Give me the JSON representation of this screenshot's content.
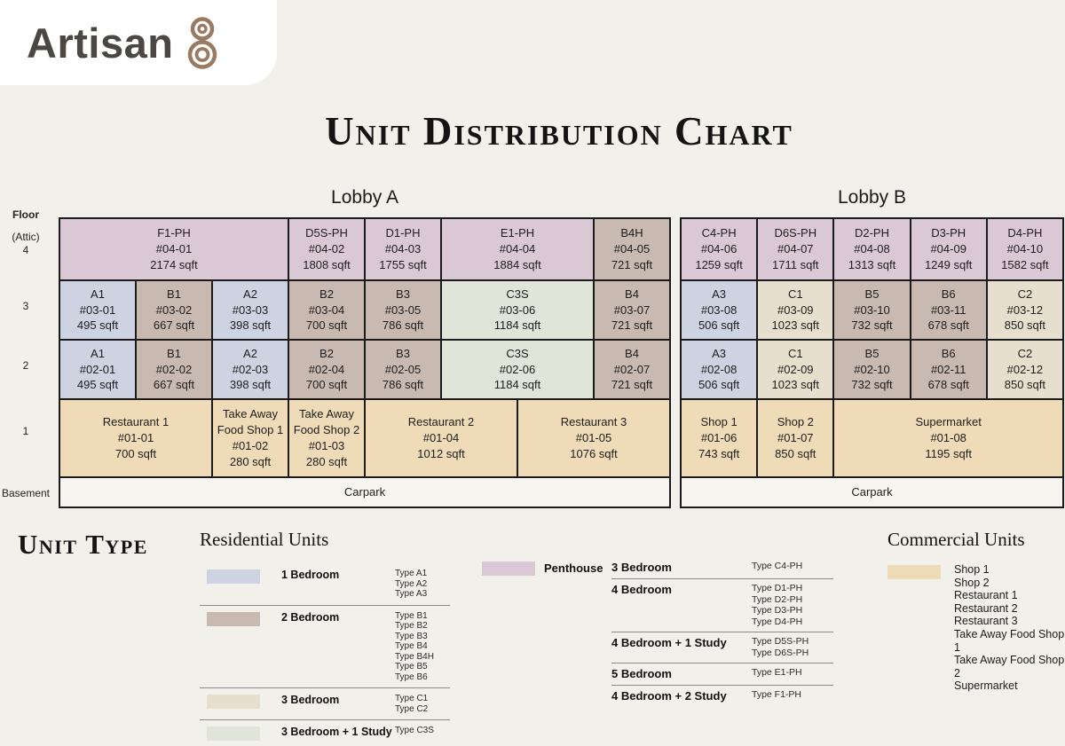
{
  "branding": {
    "name": "Artisan",
    "number": "8",
    "text_color": "#4a4745",
    "number_color": "#9a7a61"
  },
  "colors": {
    "penthouse": "#dbc8d5",
    "bed1": "#cdd3e0",
    "bed2": "#c8bab1",
    "bed3": "#e6dfcd",
    "bed3s": "#dfe5d9",
    "commercial": "#efdbb7",
    "carpark": "#f6f5ef"
  },
  "chart_data": {
    "type": "table",
    "title": "Unit Distribution Chart",
    "floor_axis": {
      "header": "Floor",
      "attic_label": "(Attic)",
      "floor4": "4",
      "floor3": "3",
      "floor2": "2",
      "floor1": "1",
      "basement": "Basement"
    },
    "lobbies": [
      {
        "name": "Lobby A",
        "columns": 8,
        "rows": [
          {
            "floor": "4 (Attic)",
            "cells": [
              {
                "span": 3,
                "type": "penthouse",
                "lines": [
                  "F1-PH",
                  "#04-01",
                  "2174 sqft"
                ]
              },
              {
                "span": 1,
                "type": "penthouse",
                "lines": [
                  "D5S-PH",
                  "#04-02",
                  "1808 sqft"
                ]
              },
              {
                "span": 1,
                "type": "penthouse",
                "lines": [
                  "D1-PH",
                  "#04-03",
                  "1755 sqft"
                ]
              },
              {
                "span": 2,
                "type": "penthouse",
                "lines": [
                  "E1-PH",
                  "#04-04",
                  "1884 sqft"
                ]
              },
              {
                "span": 1,
                "type": "bed2",
                "lines": [
                  "B4H",
                  "#04-05",
                  "721 sqft"
                ]
              }
            ]
          },
          {
            "floor": "3",
            "cells": [
              {
                "span": 1,
                "type": "bed1",
                "lines": [
                  "A1",
                  "#03-01",
                  "495 sqft"
                ]
              },
              {
                "span": 1,
                "type": "bed2",
                "lines": [
                  "B1",
                  "#03-02",
                  "667 sqft"
                ]
              },
              {
                "span": 1,
                "type": "bed1",
                "lines": [
                  "A2",
                  "#03-03",
                  "398 sqft"
                ]
              },
              {
                "span": 1,
                "type": "bed2",
                "lines": [
                  "B2",
                  "#03-04",
                  "700 sqft"
                ]
              },
              {
                "span": 1,
                "type": "bed2",
                "lines": [
                  "B3",
                  "#03-05",
                  "786 sqft"
                ]
              },
              {
                "span": 2,
                "type": "bed3s",
                "lines": [
                  "C3S",
                  "#03-06",
                  "1184 sqft"
                ]
              },
              {
                "span": 1,
                "type": "bed2",
                "lines": [
                  "B4",
                  "#03-07",
                  "721 sqft"
                ]
              }
            ]
          },
          {
            "floor": "2",
            "cells": [
              {
                "span": 1,
                "type": "bed1",
                "lines": [
                  "A1",
                  "#02-01",
                  "495 sqft"
                ]
              },
              {
                "span": 1,
                "type": "bed2",
                "lines": [
                  "B1",
                  "#02-02",
                  "667 sqft"
                ]
              },
              {
                "span": 1,
                "type": "bed1",
                "lines": [
                  "A2",
                  "#02-03",
                  "398 sqft"
                ]
              },
              {
                "span": 1,
                "type": "bed2",
                "lines": [
                  "B2",
                  "#02-04",
                  "700 sqft"
                ]
              },
              {
                "span": 1,
                "type": "bed2",
                "lines": [
                  "B3",
                  "#02-05",
                  "786 sqft"
                ]
              },
              {
                "span": 2,
                "type": "bed3s",
                "lines": [
                  "C3S",
                  "#02-06",
                  "1184 sqft"
                ]
              },
              {
                "span": 1,
                "type": "bed2",
                "lines": [
                  "B4",
                  "#02-07",
                  "721 sqft"
                ]
              }
            ]
          },
          {
            "floor": "1",
            "cells": [
              {
                "span": 2,
                "type": "commercial",
                "lines": [
                  "Restaurant 1",
                  "#01-01",
                  "700 sqft"
                ]
              },
              {
                "span": 1,
                "type": "commercial",
                "lines": [
                  "Take Away",
                  "Food Shop 1",
                  "#01-02",
                  "280 sqft"
                ]
              },
              {
                "span": 1,
                "type": "commercial",
                "lines": [
                  "Take Away",
                  "Food Shop 2",
                  "#01-03",
                  "280 sqft"
                ]
              },
              {
                "span": 2,
                "type": "commercial",
                "lines": [
                  "Restaurant 2",
                  "#01-04",
                  "1012 sqft"
                ]
              },
              {
                "span": 2,
                "type": "commercial",
                "lines": [
                  "Restaurant 3",
                  "#01-05",
                  "1076 sqft"
                ]
              }
            ]
          },
          {
            "floor": "Basement",
            "cells": [
              {
                "span": 8,
                "type": "carpark",
                "lines": [
                  "Carpark"
                ]
              }
            ]
          }
        ]
      },
      {
        "name": "Lobby B",
        "columns": 5,
        "rows": [
          {
            "floor": "4 (Attic)",
            "cells": [
              {
                "span": 1,
                "type": "penthouse",
                "lines": [
                  "C4-PH",
                  "#04-06",
                  "1259 sqft"
                ]
              },
              {
                "span": 1,
                "type": "penthouse",
                "lines": [
                  "D6S-PH",
                  "#04-07",
                  "1711 sqft"
                ]
              },
              {
                "span": 1,
                "type": "penthouse",
                "lines": [
                  "D2-PH",
                  "#04-08",
                  "1313 sqft"
                ]
              },
              {
                "span": 1,
                "type": "penthouse",
                "lines": [
                  "D3-PH",
                  "#04-09",
                  "1249 sqft"
                ]
              },
              {
                "span": 1,
                "type": "penthouse",
                "lines": [
                  "D4-PH",
                  "#04-10",
                  "1582 sqft"
                ]
              }
            ]
          },
          {
            "floor": "3",
            "cells": [
              {
                "span": 1,
                "type": "bed1",
                "lines": [
                  "A3",
                  "#03-08",
                  "506 sqft"
                ]
              },
              {
                "span": 1,
                "type": "bed3",
                "lines": [
                  "C1",
                  "#03-09",
                  "1023 sqft"
                ]
              },
              {
                "span": 1,
                "type": "bed2",
                "lines": [
                  "B5",
                  "#03-10",
                  "732 sqft"
                ]
              },
              {
                "span": 1,
                "type": "bed2",
                "lines": [
                  "B6",
                  "#03-11",
                  "678 sqft"
                ]
              },
              {
                "span": 1,
                "type": "bed3",
                "lines": [
                  "C2",
                  "#03-12",
                  "850 sqft"
                ]
              }
            ]
          },
          {
            "floor": "2",
            "cells": [
              {
                "span": 1,
                "type": "bed1",
                "lines": [
                  "A3",
                  "#02-08",
                  "506 sqft"
                ]
              },
              {
                "span": 1,
                "type": "bed3",
                "lines": [
                  "C1",
                  "#02-09",
                  "1023 sqft"
                ]
              },
              {
                "span": 1,
                "type": "bed2",
                "lines": [
                  "B5",
                  "#02-10",
                  "732 sqft"
                ]
              },
              {
                "span": 1,
                "type": "bed2",
                "lines": [
                  "B6",
                  "#02-11",
                  "678 sqft"
                ]
              },
              {
                "span": 1,
                "type": "bed3",
                "lines": [
                  "C2",
                  "#02-12",
                  "850 sqft"
                ]
              }
            ]
          },
          {
            "floor": "1",
            "cells": [
              {
                "span": 1,
                "type": "commercial",
                "lines": [
                  "Shop 1",
                  "#01-06",
                  "743 sqft"
                ]
              },
              {
                "span": 1,
                "type": "commercial",
                "lines": [
                  "Shop 2",
                  "#01-07",
                  "850 sqft"
                ]
              },
              {
                "span": 3,
                "type": "commercial",
                "lines": [
                  "Supermarket",
                  "#01-08",
                  "1195 sqft"
                ]
              }
            ]
          },
          {
            "floor": "Basement",
            "cells": [
              {
                "span": 5,
                "type": "carpark",
                "lines": [
                  "Carpark"
                ]
              }
            ]
          }
        ]
      }
    ],
    "legend": {
      "unit_type_heading": "Unit Type",
      "residential": {
        "heading": "Residential Units",
        "groups": [
          {
            "label": "1 Bedroom",
            "color": "bed1",
            "types": [
              "Type A1",
              "Type A2",
              "Type A3"
            ]
          },
          {
            "label": "2 Bedroom",
            "color": "bed2",
            "types": [
              "Type B1",
              "Type B2",
              "Type B3",
              "Type B4",
              "Type B4H",
              "Type B5",
              "Type B6"
            ]
          },
          {
            "label": "3 Bedroom",
            "color": "bed3",
            "types": [
              "Type C1",
              "Type C2"
            ]
          },
          {
            "label": "3 Bedroom + 1 Study",
            "color": "bed3s",
            "types": [
              "Type C3S"
            ]
          }
        ]
      },
      "penthouse": {
        "label": "Penthouse",
        "color": "penthouse",
        "groups": [
          {
            "label": "3 Bedroom",
            "types": [
              "Type C4-PH"
            ]
          },
          {
            "label": "4 Bedroom",
            "types": [
              "Type D1-PH",
              "Type D2-PH",
              "Type D3-PH",
              "Type D4-PH"
            ]
          },
          {
            "label": "4 Bedroom + 1 Study",
            "types": [
              "Type D5S-PH",
              "Type D6S-PH"
            ]
          },
          {
            "label": "5 Bedroom",
            "types": [
              "Type E1-PH"
            ]
          },
          {
            "label": "4 Bedroom + 2 Study",
            "types": [
              "Type F1-PH"
            ]
          }
        ]
      },
      "commercial": {
        "heading": "Commercial Units",
        "color": "commercial",
        "items": [
          "Shop 1",
          "Shop 2",
          "Restaurant 1",
          "Restaurant 2",
          "Restaurant 3",
          "Take Away Food Shop 1",
          "Take Away Food Shop 2",
          "Supermarket"
        ]
      }
    }
  }
}
